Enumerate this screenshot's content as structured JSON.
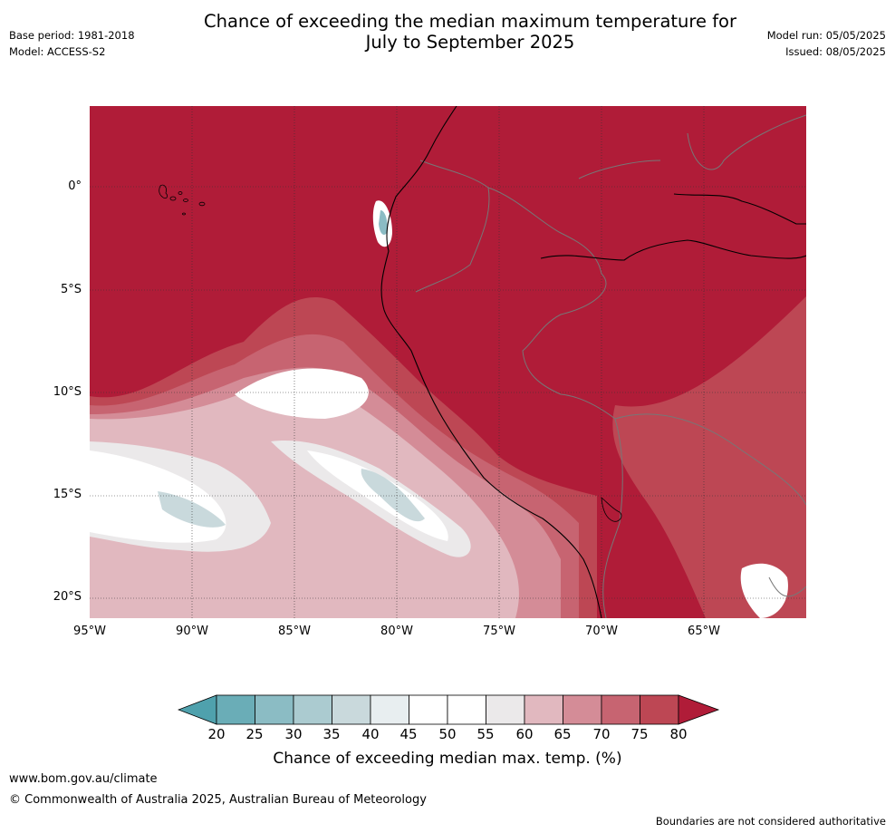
{
  "title_line1": "Chance of exceeding the median maximum temperature for",
  "title_line2": "July to September 2025",
  "meta_left": {
    "base_period": "Base period: 1981-2018",
    "model": "Model: ACCESS-S2"
  },
  "meta_right": {
    "model_run": "Model run: 05/05/2025",
    "issued": "Issued: 08/05/2025"
  },
  "map": {
    "lat_labels": [
      "0°",
      "5°S",
      "10°S",
      "15°S",
      "20°S"
    ],
    "lon_labels": [
      "95°W",
      "90°W",
      "85°W",
      "80°W",
      "75°W",
      "70°W",
      "65°W"
    ]
  },
  "colorbar": {
    "ticks": [
      "20",
      "25",
      "30",
      "35",
      "40",
      "45",
      "50",
      "55",
      "60",
      "65",
      "70",
      "75",
      "80"
    ],
    "colors": [
      "#4fa1ad",
      "#6aadb7",
      "#8bbcc4",
      "#abcbd0",
      "#c9d9dc",
      "#e8eef0",
      "#ffffff",
      "#ffffff",
      "#ebe9ea",
      "#e1b8bf",
      "#d48c97",
      "#c76471",
      "#bd4754",
      "#b01c38"
    ],
    "title": "Chance of exceeding median max. temp. (%)"
  },
  "footer": {
    "url": "www.bom.gov.au/climate",
    "copyright": "© Commonwealth of Australia 2025, Australian Bureau of Meteorology",
    "disclaimer": "Boundaries are not considered authoritative"
  }
}
